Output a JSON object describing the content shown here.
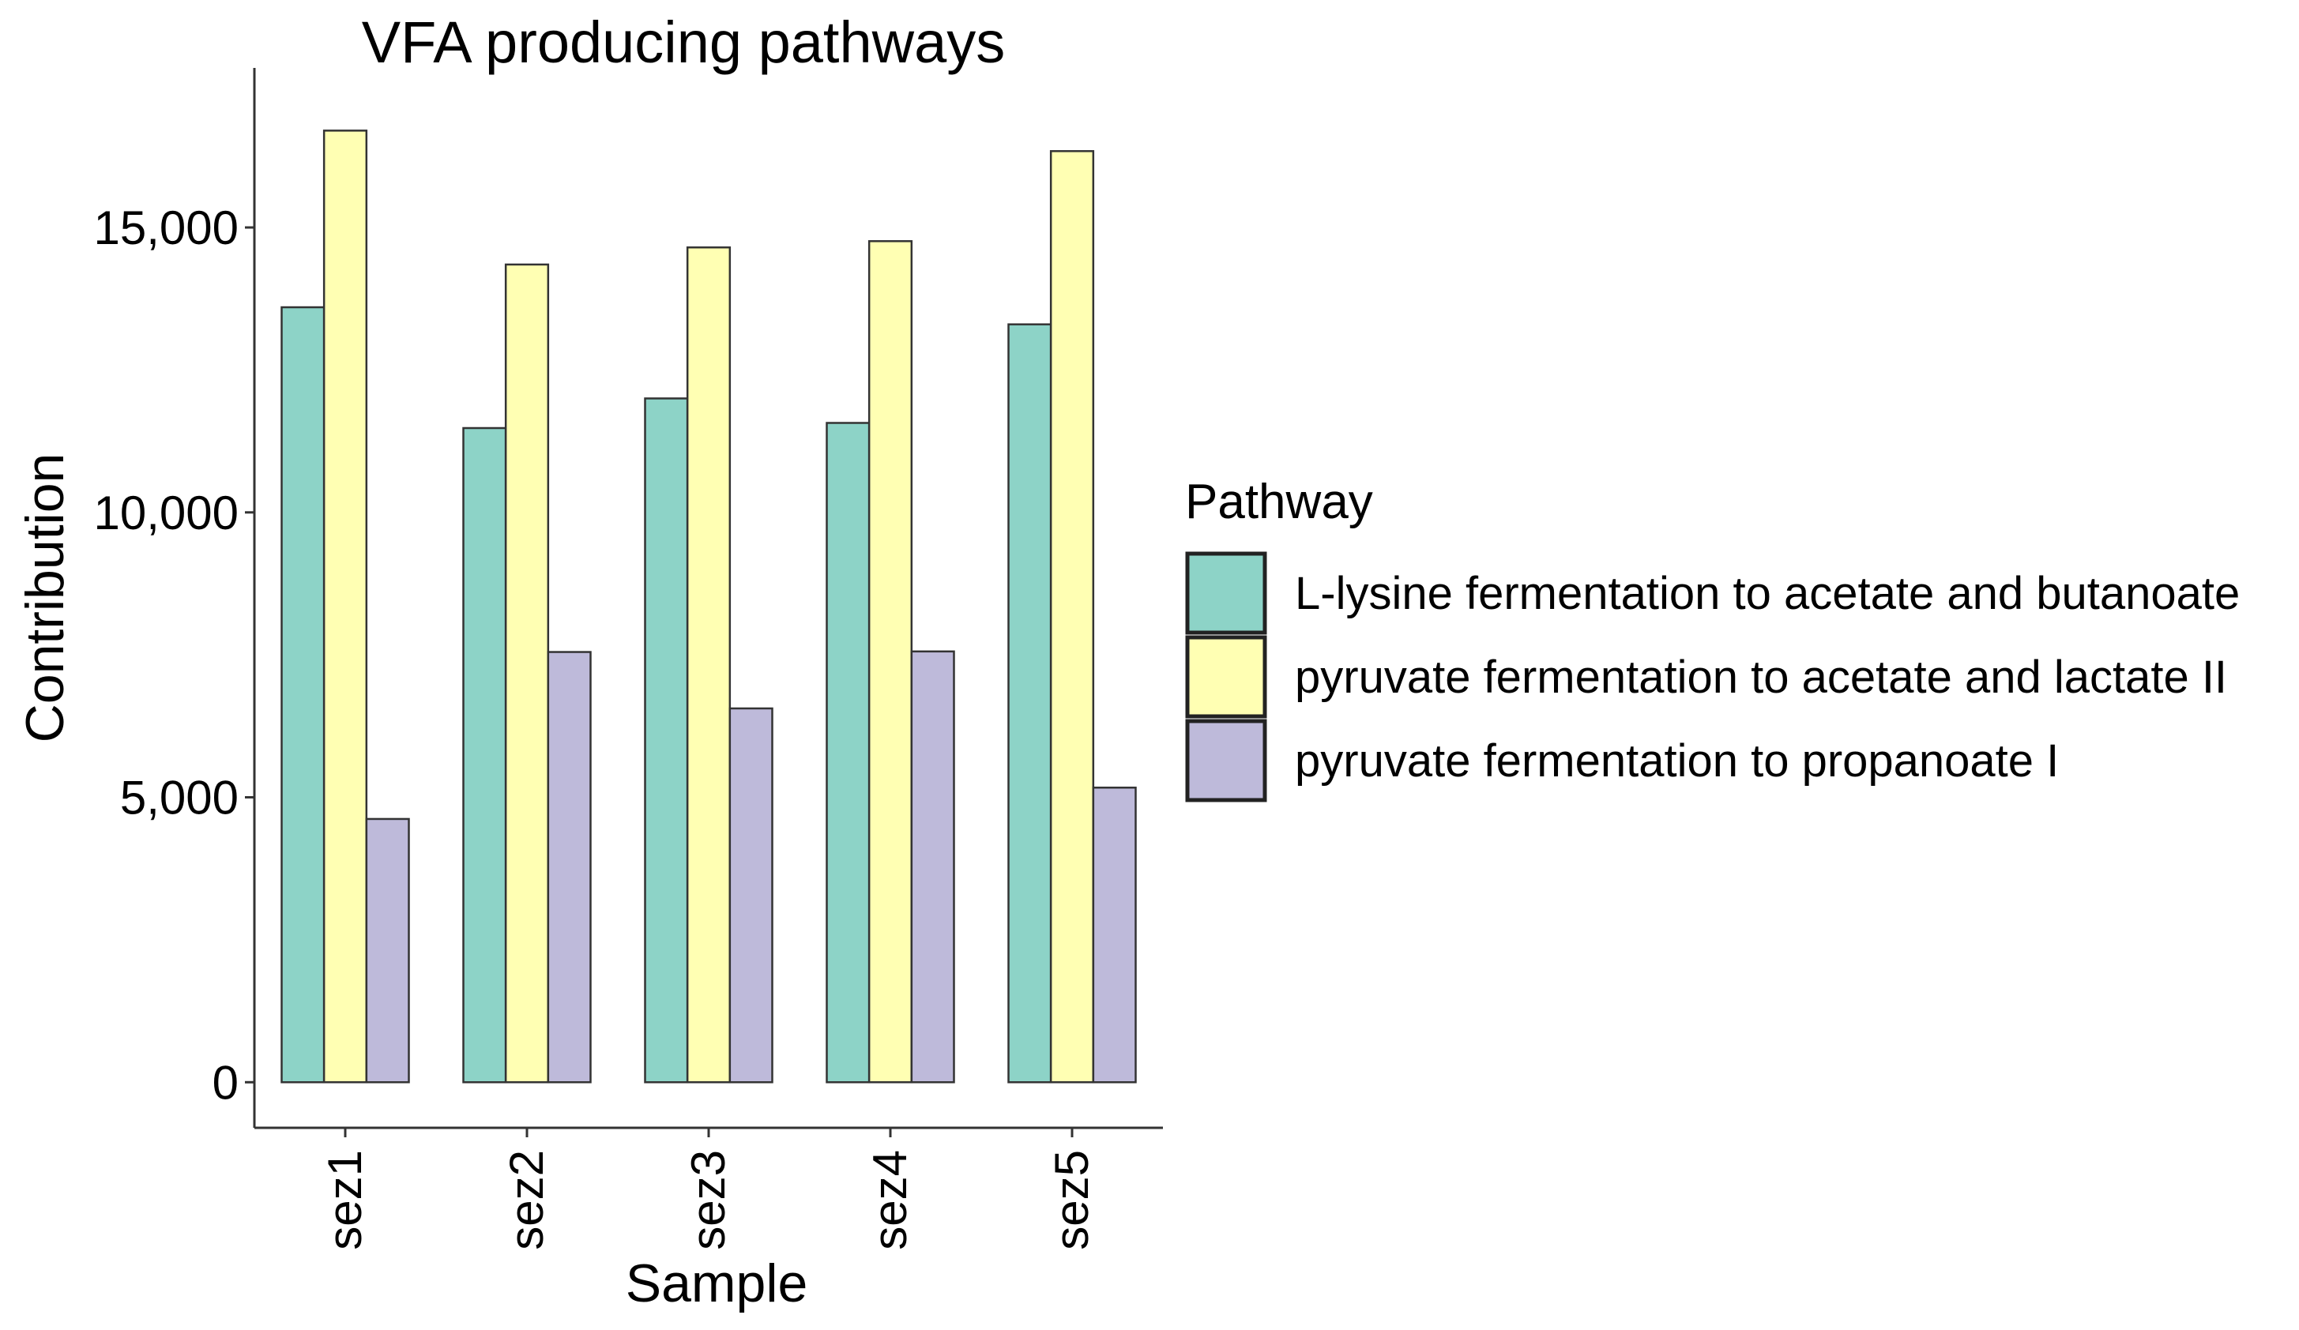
{
  "chart_data": {
    "type": "bar",
    "title": "VFA producing pathways",
    "xlabel": "Sample",
    "ylabel": "Contribution",
    "categories": [
      "sez1",
      "sez2",
      "sez3",
      "sez4",
      "sez5"
    ],
    "ylim": [
      -800,
      17800
    ],
    "yticks": [
      0,
      5000,
      10000,
      15000
    ],
    "ytick_labels": [
      "0",
      "5,000",
      "10,000",
      "15,000"
    ],
    "grid": false,
    "legend": {
      "title": "Pathway",
      "position": "right"
    },
    "series": [
      {
        "name": "L-lysine fermentation to acetate and butanoate",
        "color": "#8DD3C7",
        "values": [
          13600,
          11480,
          12000,
          11570,
          13300
        ]
      },
      {
        "name": "pyruvate fermentation to acetate and lactate II",
        "color": "#FFFFB3",
        "values": [
          16700,
          14350,
          14650,
          14760,
          16340
        ]
      },
      {
        "name": "pyruvate fermentation to propanoate I",
        "color": "#BEBADA",
        "values": [
          4620,
          7550,
          6560,
          7560,
          5170
        ]
      }
    ]
  }
}
